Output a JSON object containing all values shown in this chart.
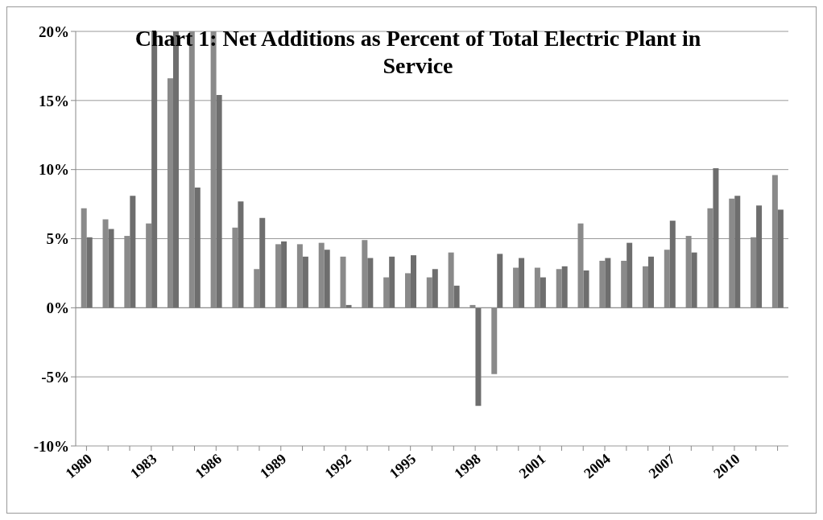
{
  "chart_data": {
    "type": "bar",
    "title": "Chart 1:  Net Additions as Percent of Total Electric Plant in Service",
    "categories": [
      "1980",
      null,
      null,
      "1983",
      null,
      null,
      "1986",
      null,
      null,
      "1989",
      null,
      null,
      "1992",
      null,
      null,
      "1995",
      null,
      null,
      "1998",
      null,
      null,
      "2001",
      null,
      null,
      "2004",
      null,
      null,
      "2007",
      null,
      null,
      "2010",
      null,
      null
    ],
    "series": [
      {
        "color": "#8a8a8a",
        "values": [
          7.2,
          6.4,
          5.2,
          6.1,
          16.6,
          20,
          20,
          5.8,
          2.8,
          4.6,
          4.6,
          4.7,
          3.7,
          4.9,
          2.2,
          2.5,
          2.2,
          4.0,
          0.2,
          -4.8,
          2.9,
          2.9,
          2.8,
          6.1,
          3.4,
          3.4,
          3.0,
          4.2,
          5.2,
          7.2,
          7.9,
          5.1,
          9.6
        ]
      },
      {
        "color": "#6e6e6e",
        "values": [
          5.1,
          5.7,
          8.1,
          20,
          20,
          8.7,
          15.4,
          7.7,
          6.5,
          4.8,
          3.7,
          4.2,
          0.2,
          3.6,
          3.7,
          3.8,
          2.8,
          1.6,
          -7.1,
          3.9,
          3.6,
          2.2,
          3.0,
          2.7,
          3.6,
          4.7,
          3.7,
          6.3,
          4.0,
          10.1,
          8.1,
          7.4,
          7.1
        ]
      }
    ],
    "ylim": [
      -10,
      20
    ],
    "yticks": [
      {
        "value": -10,
        "label": "-10%"
      },
      {
        "value": -5,
        "label": "-5%"
      },
      {
        "value": 0,
        "label": "0%"
      },
      {
        "value": 5,
        "label": "5%"
      },
      {
        "value": 10,
        "label": "10%"
      },
      {
        "value": 15,
        "label": "15%"
      },
      {
        "value": 20,
        "label": "20%"
      }
    ],
    "grid": "y"
  }
}
